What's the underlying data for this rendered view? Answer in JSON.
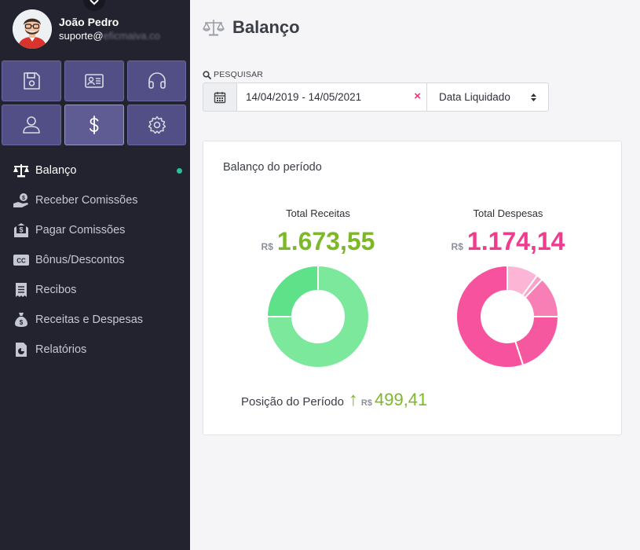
{
  "user": {
    "name": "João Pedro",
    "email_visible": "suporte@",
    "email_blurred": "eficmaiva.co"
  },
  "tiles": [
    {
      "icon": "save-icon",
      "active": false
    },
    {
      "icon": "id-card-icon",
      "active": false
    },
    {
      "icon": "headphones-icon",
      "active": false
    },
    {
      "icon": "user-icon",
      "active": false
    },
    {
      "icon": "dollar-icon",
      "active": true
    },
    {
      "icon": "gear-icon",
      "active": false
    }
  ],
  "menu": [
    {
      "label": "Balanço",
      "icon": "scale-icon",
      "active": true
    },
    {
      "label": "Receber Comissões",
      "icon": "hand-money-icon",
      "active": false
    },
    {
      "label": "Pagar Comissões",
      "icon": "envelope-money-icon",
      "active": false
    },
    {
      "label": "Bônus/Descontos",
      "icon": "cc-icon",
      "active": false
    },
    {
      "label": "Recibos",
      "icon": "receipt-icon",
      "active": false
    },
    {
      "label": "Receitas e Despesas",
      "icon": "money-bag-icon",
      "active": false
    },
    {
      "label": "Relatórios",
      "icon": "report-icon",
      "active": false
    }
  ],
  "page": {
    "title": "Balanço"
  },
  "search": {
    "label": "PESQUISAR",
    "date_range": "14/04/2019 - 14/05/2021",
    "clear": "×",
    "select_value": "Data Liquidado"
  },
  "card": {
    "title": "Balanço do período",
    "receitas": {
      "label": "Total Receitas",
      "currency": "R$",
      "value": "1.673,55"
    },
    "despesas": {
      "label": "Total Despesas",
      "currency": "R$",
      "value": "1.174,14"
    },
    "posicao": {
      "label": "Posição do Período",
      "arrow": "↑",
      "currency": "R$",
      "value": "499,41"
    }
  },
  "colors": {
    "accent_green": "#7cb827",
    "accent_pink": "#ef3c8e",
    "sidebar_bg": "#22232f",
    "tile_bg": "#524e86"
  },
  "chart_data": [
    {
      "type": "pie",
      "name": "receitas-donut",
      "slices": [
        {
          "value": 75,
          "color": "#7be89c"
        },
        {
          "value": 25,
          "color": "#5fe18a"
        }
      ]
    },
    {
      "type": "pie",
      "name": "despesas-donut",
      "slices": [
        {
          "value": 10,
          "color": "#fcb5d5"
        },
        {
          "value": 2,
          "color": "#f9a3cb"
        },
        {
          "value": 13,
          "color": "#f77fb6"
        },
        {
          "value": 20,
          "color": "#f5589f"
        },
        {
          "value": 55,
          "color": "#f7529d"
        }
      ]
    }
  ]
}
